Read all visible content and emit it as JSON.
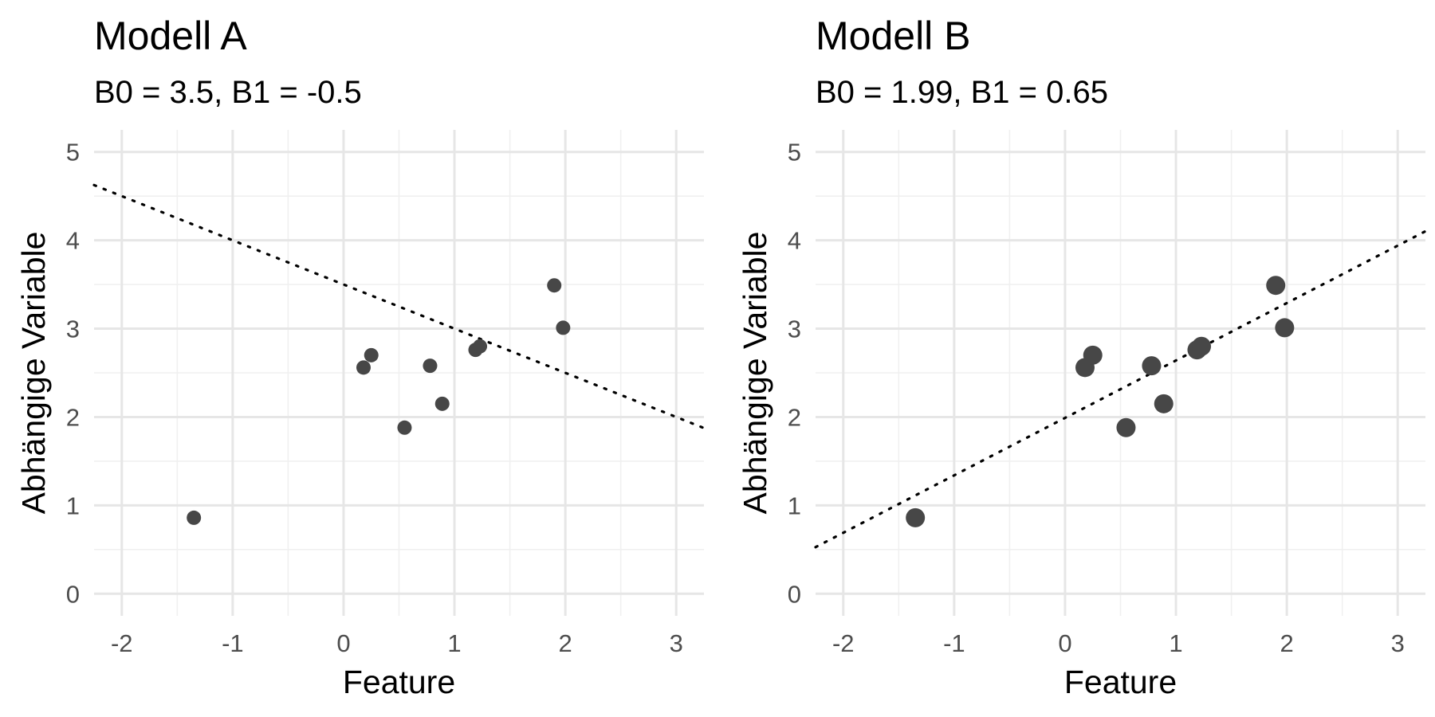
{
  "chart_data": [
    {
      "type": "scatter",
      "title": "Modell A",
      "subtitle": "B0 = 3.5, B1 = -0.5",
      "xlabel": "Feature",
      "ylabel": "Abhängige Variable",
      "xlim": [
        -2.25,
        3.25
      ],
      "ylim": [
        -0.25,
        5.25
      ],
      "xticks": [
        -2,
        -1,
        0,
        1,
        2,
        3
      ],
      "yticks": [
        0,
        1,
        2,
        3,
        4,
        5
      ],
      "grid": true,
      "line": {
        "intercept": 3.5,
        "slope": -0.5,
        "style": "dotted"
      },
      "series": [
        {
          "x": [
            -1.35,
            0.18,
            0.25,
            0.55,
            0.78,
            0.89,
            1.19,
            1.23,
            1.9,
            1.98
          ],
          "y": [
            0.86,
            2.56,
            2.7,
            1.88,
            2.58,
            2.15,
            2.76,
            2.8,
            3.49,
            3.01
          ]
        }
      ],
      "point_size": "small"
    },
    {
      "type": "scatter",
      "title": "Modell B",
      "subtitle": "B0 = 1.99, B1 = 0.65",
      "xlabel": "Feature",
      "ylabel": "Abhängige Variable",
      "xlim": [
        -2.25,
        3.25
      ],
      "ylim": [
        -0.25,
        5.25
      ],
      "xticks": [
        -2,
        -1,
        0,
        1,
        2,
        3
      ],
      "yticks": [
        0,
        1,
        2,
        3,
        4,
        5
      ],
      "grid": true,
      "line": {
        "intercept": 1.99,
        "slope": 0.65,
        "style": "dotted"
      },
      "series": [
        {
          "x": [
            -1.35,
            0.18,
            0.25,
            0.55,
            0.78,
            0.89,
            1.19,
            1.23,
            1.9,
            1.98
          ],
          "y": [
            0.86,
            2.56,
            2.7,
            1.88,
            2.58,
            2.15,
            2.76,
            2.8,
            3.49,
            3.01
          ]
        }
      ],
      "point_size": "large"
    }
  ],
  "colors": {
    "point": "#474747",
    "grid_major": "#e6e6e6",
    "grid_minor": "#f0f0f0",
    "line": "#000000"
  }
}
